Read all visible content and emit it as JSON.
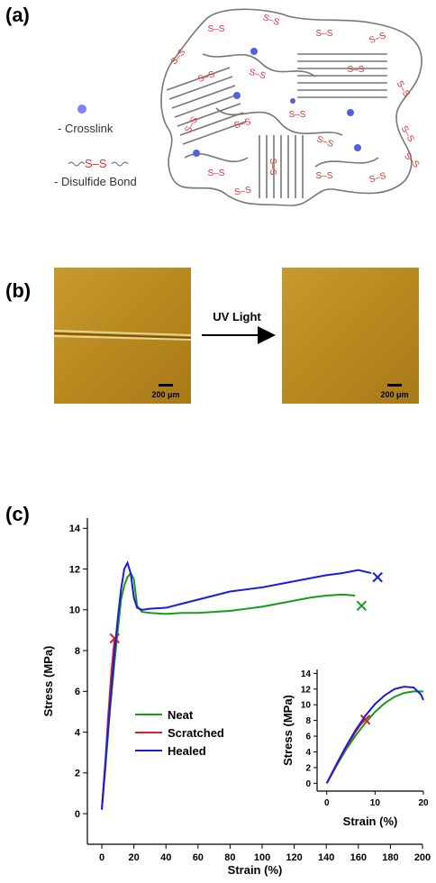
{
  "panel_labels": [
    "(a)",
    "(b)",
    "(c)"
  ],
  "diagram": {
    "crosslink_label": "- Crosslink",
    "bond_label": "S–S",
    "disulfide_label": "- Disulfide Bond"
  },
  "micrographs": {
    "arrow_label": "UV Light",
    "scale_bar_label": "200 μm"
  },
  "chart_data": [
    {
      "type": "line",
      "x_label": "Strain (%)",
      "y_label": "Stress (MPa)",
      "xlim": [
        -9,
        200
      ],
      "ylim": [
        -1.5,
        14.5
      ],
      "xticks": [
        0,
        20,
        40,
        60,
        80,
        100,
        120,
        140,
        160,
        180,
        200
      ],
      "yticks": [
        0,
        2,
        4,
        6,
        8,
        10,
        12,
        14
      ],
      "legend": true,
      "series": [
        {
          "name": "Neat",
          "color": "#1a9a1a",
          "x": [
            0,
            2,
            5,
            8,
            10,
            12,
            14,
            16,
            18,
            20,
            22,
            25,
            30,
            40,
            50,
            60,
            70,
            80,
            90,
            100,
            110,
            120,
            130,
            140,
            150,
            158
          ],
          "values": [
            0.2,
            2,
            5,
            7.5,
            9,
            10.5,
            11.2,
            11.6,
            11.8,
            11.5,
            10.2,
            9.9,
            9.85,
            9.8,
            9.85,
            9.85,
            9.9,
            9.95,
            10.05,
            10.15,
            10.3,
            10.45,
            10.6,
            10.7,
            10.75,
            10.7
          ],
          "failure_x": 162,
          "failure_y": 10.2
        },
        {
          "name": "Scratched",
          "color": "#e02020",
          "x": [
            0,
            2,
            4,
            6,
            8
          ],
          "values": [
            0.2,
            2.2,
            4.8,
            7,
            8.6
          ],
          "failure_x": 8,
          "failure_y": 8.6
        },
        {
          "name": "Healed",
          "color": "#1a1ae0",
          "x": [
            0,
            2,
            5,
            8,
            10,
            12,
            14,
            16,
            18,
            20,
            22,
            25,
            30,
            40,
            50,
            60,
            70,
            80,
            90,
            100,
            110,
            120,
            130,
            140,
            150,
            160,
            168
          ],
          "values": [
            0.2,
            2.3,
            5.2,
            8,
            9.6,
            11,
            12,
            12.3,
            11.8,
            10.6,
            10.1,
            10,
            10.05,
            10.1,
            10.3,
            10.5,
            10.7,
            10.9,
            11,
            11.1,
            11.25,
            11.4,
            11.55,
            11.7,
            11.8,
            11.95,
            11.8
          ],
          "failure_x": 172,
          "failure_y": 11.6
        }
      ]
    },
    {
      "type": "line",
      "x_label": "Strain (%)",
      "y_label": "Stress (MPa)",
      "xlim": [
        -2,
        20
      ],
      "ylim": [
        -1,
        14.5
      ],
      "xticks": [
        0,
        10,
        20
      ],
      "yticks": [
        0,
        2,
        4,
        6,
        8,
        10,
        12,
        14
      ],
      "legend": false,
      "series": [
        {
          "name": "Neat",
          "color": "#1a9a1a",
          "x": [
            0,
            2,
            4,
            6,
            8,
            10,
            12,
            14,
            16,
            18,
            20
          ],
          "values": [
            0,
            2.2,
            4.3,
            6.1,
            7.7,
            9.1,
            10.2,
            11,
            11.5,
            11.7,
            11.7
          ]
        },
        {
          "name": "Scratched",
          "color": "#e02020",
          "x": [
            0,
            2,
            4,
            6,
            8
          ],
          "values": [
            0,
            2.3,
            4.6,
            6.6,
            8.3
          ],
          "failure_x": 8,
          "failure_y": 8.1
        },
        {
          "name": "Healed",
          "color": "#1a1ae0",
          "x": [
            0,
            2,
            4,
            6,
            8,
            10,
            12,
            14,
            16,
            18,
            19.5,
            20
          ],
          "values": [
            0,
            2.4,
            4.7,
            6.8,
            8.6,
            10.1,
            11.2,
            12,
            12.3,
            12.2,
            11.3,
            10.6
          ]
        }
      ]
    }
  ]
}
